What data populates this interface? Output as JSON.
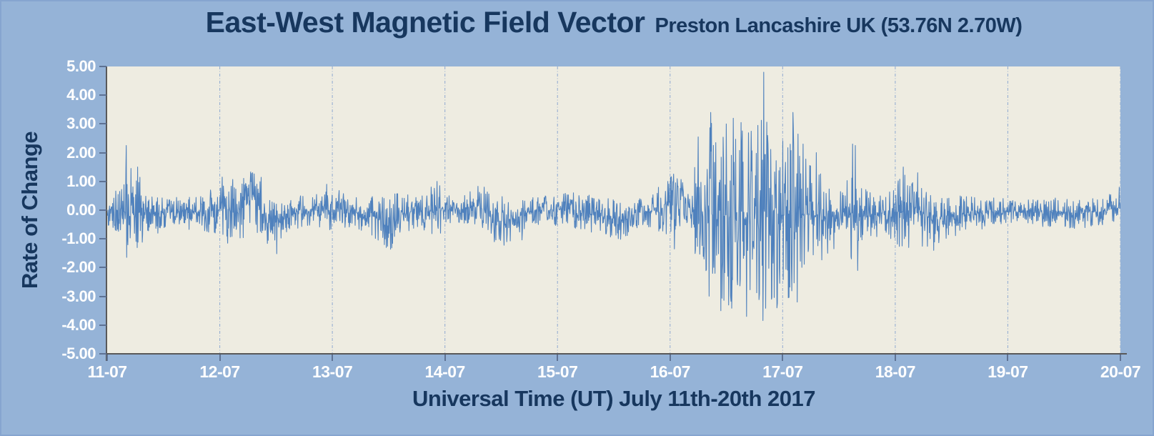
{
  "chart_data": {
    "type": "line",
    "title": "East-West Magnetic Field Vector",
    "subtitle": "Preston Lancashire UK (53.76N 2.70W)",
    "xlabel": "Universal Time (UT) July 11th-20th 2017",
    "ylabel": "Rate of Change",
    "x_tick_labels": [
      "11-07",
      "12-07",
      "13-07",
      "14-07",
      "15-07",
      "16-07",
      "17-07",
      "18-07",
      "19-07",
      "20-07"
    ],
    "y_tick_labels": [
      "5.00",
      "4.00",
      "3.00",
      "2.00",
      "1.00",
      "0.00",
      "-1.00",
      "-2.00",
      "-3.00",
      "-4.00",
      "-5.00"
    ],
    "xlim_days": [
      11,
      20
    ],
    "ylim": [
      -5,
      5
    ],
    "grid": {
      "vertical": true,
      "horizontal": false,
      "style": "dash-dot"
    },
    "legend": "none",
    "series_name": "east-west-rate-of-change",
    "n_points": 2600,
    "seed": 20170711,
    "noise_envelope": [
      [
        11.0,
        0.5
      ],
      [
        11.14,
        0.9
      ],
      [
        11.18,
        2.3
      ],
      [
        11.24,
        1.1
      ],
      [
        11.28,
        1.55
      ],
      [
        11.34,
        0.7
      ],
      [
        11.5,
        0.55
      ],
      [
        11.75,
        0.5
      ],
      [
        11.95,
        0.85
      ],
      [
        12.1,
        1.0
      ],
      [
        12.3,
        1.15
      ],
      [
        12.45,
        0.85
      ],
      [
        12.6,
        0.6
      ],
      [
        12.85,
        0.55
      ],
      [
        13.0,
        0.75
      ],
      [
        13.2,
        0.55
      ],
      [
        13.45,
        0.85
      ],
      [
        13.55,
        0.95
      ],
      [
        13.75,
        0.5
      ],
      [
        13.93,
        1.0
      ],
      [
        14.05,
        0.5
      ],
      [
        14.35,
        0.75
      ],
      [
        14.55,
        0.9
      ],
      [
        14.75,
        0.5
      ],
      [
        15.0,
        0.55
      ],
      [
        15.2,
        0.65
      ],
      [
        15.5,
        0.75
      ],
      [
        15.75,
        0.5
      ],
      [
        15.95,
        0.95
      ],
      [
        16.05,
        1.2
      ],
      [
        16.12,
        0.9
      ],
      [
        16.18,
        0.4
      ],
      [
        16.24,
        2.4
      ],
      [
        16.3,
        1.6
      ],
      [
        16.36,
        3.3
      ],
      [
        16.42,
        2.7
      ],
      [
        16.48,
        3.4
      ],
      [
        16.55,
        3.2
      ],
      [
        16.62,
        2.9
      ],
      [
        16.68,
        3.6
      ],
      [
        16.75,
        2.7
      ],
      [
        16.82,
        4.1
      ],
      [
        16.88,
        2.9
      ],
      [
        16.95,
        3.3
      ],
      [
        17.02,
        2.7
      ],
      [
        17.08,
        3.3
      ],
      [
        17.15,
        2.9
      ],
      [
        17.25,
        1.9
      ],
      [
        17.35,
        1.6
      ],
      [
        17.45,
        1.1
      ],
      [
        17.55,
        0.9
      ],
      [
        17.62,
        2.2
      ],
      [
        17.68,
        1.4
      ],
      [
        17.78,
        0.85
      ],
      [
        17.9,
        0.7
      ],
      [
        18.05,
        1.3
      ],
      [
        18.15,
        1.1
      ],
      [
        18.25,
        1.2
      ],
      [
        18.38,
        1.0
      ],
      [
        18.5,
        0.8
      ],
      [
        18.65,
        0.6
      ],
      [
        18.85,
        0.5
      ],
      [
        19.1,
        0.45
      ],
      [
        19.35,
        0.5
      ],
      [
        19.6,
        0.55
      ],
      [
        19.8,
        0.5
      ],
      [
        20.0,
        0.65
      ]
    ],
    "baseline_drift": [
      [
        11.0,
        0.0
      ],
      [
        11.4,
        -0.12
      ],
      [
        11.6,
        -0.05
      ],
      [
        12.0,
        0.0
      ],
      [
        12.22,
        0.1
      ],
      [
        12.3,
        0.5
      ],
      [
        12.38,
        -0.15
      ],
      [
        12.45,
        -0.5
      ],
      [
        12.58,
        -0.3
      ],
      [
        12.72,
        0.0
      ],
      [
        13.1,
        0.0
      ],
      [
        13.35,
        -0.2
      ],
      [
        13.5,
        -0.5
      ],
      [
        13.65,
        -0.1
      ],
      [
        14.0,
        0.0
      ],
      [
        14.3,
        0.15
      ],
      [
        14.45,
        -0.4
      ],
      [
        14.6,
        -0.35
      ],
      [
        14.75,
        -0.05
      ],
      [
        15.1,
        0.05
      ],
      [
        15.45,
        -0.3
      ],
      [
        15.55,
        -0.45
      ],
      [
        15.7,
        -0.1
      ],
      [
        15.95,
        0.1
      ],
      [
        16.1,
        0.3
      ],
      [
        16.2,
        0.0
      ],
      [
        16.5,
        -0.25
      ],
      [
        16.65,
        -0.35
      ],
      [
        16.8,
        0.0
      ],
      [
        16.95,
        -0.25
      ],
      [
        17.1,
        -0.1
      ],
      [
        17.3,
        -0.25
      ],
      [
        17.5,
        -0.2
      ],
      [
        17.75,
        -0.25
      ],
      [
        17.95,
        -0.1
      ],
      [
        18.1,
        0.0
      ],
      [
        18.35,
        -0.35
      ],
      [
        18.55,
        -0.2
      ],
      [
        18.8,
        -0.05
      ],
      [
        19.2,
        -0.08
      ],
      [
        19.6,
        -0.1
      ],
      [
        19.85,
        -0.05
      ],
      [
        20.0,
        0.1
      ]
    ],
    "notable_peaks": [
      {
        "day": 11.17,
        "value": 2.25
      },
      {
        "day": 11.21,
        "value": 1.45
      },
      {
        "day": 11.27,
        "value": 1.5
      },
      {
        "day": 11.45,
        "value": -0.8
      },
      {
        "day": 12.02,
        "value": 1.15
      },
      {
        "day": 12.07,
        "value": -1.15
      },
      {
        "day": 12.29,
        "value": 1.3
      },
      {
        "day": 12.43,
        "value": -1.05
      },
      {
        "day": 12.95,
        "value": 0.9
      },
      {
        "day": 13.48,
        "value": -1.3
      },
      {
        "day": 13.93,
        "value": 1.0
      },
      {
        "day": 14.35,
        "value": 0.8
      },
      {
        "day": 14.55,
        "value": -1.1
      },
      {
        "day": 15.52,
        "value": -0.87
      },
      {
        "day": 15.98,
        "value": 1.0
      },
      {
        "day": 16.04,
        "value": -1.35
      },
      {
        "day": 16.25,
        "value": 2.55
      },
      {
        "day": 16.3,
        "value": -1.7
      },
      {
        "day": 16.36,
        "value": 3.4
      },
      {
        "day": 16.4,
        "value": -2.2
      },
      {
        "day": 16.45,
        "value": -3.5
      },
      {
        "day": 16.5,
        "value": 3.0
      },
      {
        "day": 16.52,
        "value": -3.3
      },
      {
        "day": 16.56,
        "value": 3.2
      },
      {
        "day": 16.6,
        "value": -2.6
      },
      {
        "day": 16.63,
        "value": 3.05
      },
      {
        "day": 16.68,
        "value": -3.7
      },
      {
        "day": 16.72,
        "value": 2.75
      },
      {
        "day": 16.78,
        "value": 2.95
      },
      {
        "day": 16.83,
        "value": 4.8
      },
      {
        "day": 16.865,
        "value": 2.6
      },
      {
        "day": 16.9,
        "value": -3.1
      },
      {
        "day": 16.95,
        "value": -3.4
      },
      {
        "day": 17.0,
        "value": 2.4
      },
      {
        "day": 17.05,
        "value": -3.05
      },
      {
        "day": 17.09,
        "value": 3.4
      },
      {
        "day": 17.13,
        "value": -3.2
      },
      {
        "day": 17.18,
        "value": 2.3
      },
      {
        "day": 17.3,
        "value": 2.0
      },
      {
        "day": 17.4,
        "value": -1.5
      },
      {
        "day": 17.62,
        "value": 2.3
      },
      {
        "day": 17.645,
        "value": 2.25
      },
      {
        "day": 17.665,
        "value": -2.1
      },
      {
        "day": 18.07,
        "value": 1.5
      },
      {
        "day": 18.12,
        "value": -1.3
      },
      {
        "day": 18.2,
        "value": 1.3
      },
      {
        "day": 18.34,
        "value": -1.4
      },
      {
        "day": 19.99,
        "value": 0.8
      }
    ],
    "colors": {
      "background": "#95b3d7",
      "plot_background": "#eeece1",
      "line": "#4f81bd",
      "gridline": "#8fa9d0",
      "axis": "#595959",
      "tick": "#5e7294",
      "title_text": "#17375e",
      "tick_label_text": "#ffffff"
    }
  }
}
